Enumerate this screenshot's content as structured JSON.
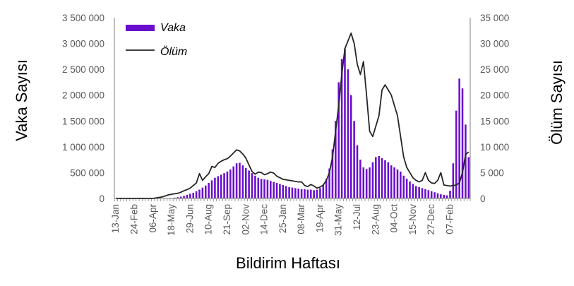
{
  "chart_data": {
    "type": "bar",
    "title": "",
    "xlabel": "Bildirim Haftası",
    "ylabel_left": "Vaka Sayısı",
    "ylabel_right": "Ölüm Sayısı",
    "ylim_left": [
      0,
      3500000
    ],
    "ylim_right": [
      0,
      35000
    ],
    "grid": false,
    "legend_position": "top-left",
    "colors": {
      "bars": "#6a0dcc",
      "line": "#262626",
      "ticks": "#595959",
      "axis": "#7f7f7f"
    },
    "y_ticks_left": [
      "0",
      "500 000",
      "1 000 000",
      "1 500 000",
      "2 000 000",
      "2 500 000",
      "3 000 000",
      "3 500 000"
    ],
    "y_ticks_right": [
      "0",
      "5 000",
      "10 000",
      "15 000",
      "20 000",
      "25 000",
      "30 000",
      "35 000"
    ],
    "x_tick_labels": [
      "13-Jan",
      "24-Feb",
      "06-Apr",
      "18-May",
      "29-Jun",
      "10-Aug",
      "21-Sep",
      "02-Nov",
      "14-Dec",
      "25-Jan",
      "08-Mar",
      "19-Apr",
      "31-May",
      "12-Jul",
      "23-Aug",
      "04-Oct",
      "15-Nov",
      "27-Dec",
      "07-Feb"
    ],
    "x_tick_weeks": [
      1,
      7,
      13,
      19,
      25,
      31,
      37,
      43,
      49,
      55,
      61,
      67,
      73,
      79,
      85,
      91,
      97,
      103,
      109
    ],
    "series": [
      {
        "name": "Vaka",
        "type": "bar",
        "axis": "left",
        "values": [
          0,
          0,
          0,
          0,
          0,
          0,
          0,
          0,
          0,
          0,
          0,
          0,
          0,
          500,
          1000,
          2000,
          3000,
          5000,
          8000,
          15000,
          25000,
          35000,
          50000,
          70000,
          90000,
          110000,
          140000,
          170000,
          210000,
          250000,
          300000,
          350000,
          400000,
          430000,
          460000,
          490000,
          520000,
          560000,
          620000,
          680000,
          690000,
          640000,
          590000,
          540000,
          490000,
          440000,
          400000,
          380000,
          370000,
          360000,
          340000,
          320000,
          300000,
          280000,
          260000,
          240000,
          220000,
          210000,
          200000,
          190000,
          180000,
          180000,
          170000,
          170000,
          160000,
          170000,
          200000,
          260000,
          380000,
          580000,
          950000,
          1500000,
          2250000,
          2700000,
          2900000,
          2500000,
          2000000,
          1500000,
          1030000,
          750000,
          600000,
          570000,
          600000,
          700000,
          800000,
          820000,
          780000,
          740000,
          700000,
          640000,
          600000,
          560000,
          520000,
          440000,
          380000,
          330000,
          280000,
          240000,
          220000,
          200000,
          180000,
          160000,
          140000,
          120000,
          100000,
          80000,
          70000,
          60000,
          150000,
          680000,
          1700000,
          2320000,
          2130000,
          1430000,
          800000
        ]
      },
      {
        "name": "Ölüm",
        "type": "line",
        "axis": "right",
        "values": [
          0,
          0,
          0,
          0,
          0,
          0,
          0,
          0,
          0,
          0,
          0,
          0,
          0,
          100,
          200,
          300,
          500,
          700,
          800,
          900,
          1000,
          1200,
          1500,
          1700,
          2000,
          2500,
          3000,
          4800,
          3500,
          4200,
          4800,
          6200,
          6000,
          6800,
          7200,
          7500,
          7700,
          8200,
          8800,
          9400,
          9200,
          8600,
          7800,
          6500,
          5200,
          4700,
          5100,
          5000,
          4600,
          4800,
          5100,
          4900,
          4300,
          4000,
          3700,
          3600,
          3500,
          3400,
          3300,
          3200,
          3200,
          2500,
          2300,
          2700,
          2400,
          2000,
          2200,
          2600,
          3500,
          5000,
          8000,
          13000,
          18000,
          24000,
          29000,
          30500,
          32000,
          30000,
          26000,
          24000,
          26500,
          20000,
          13000,
          12000,
          14000,
          16000,
          21000,
          22000,
          21000,
          20000,
          18000,
          16000,
          12000,
          8000,
          6000,
          5000,
          4000,
          3500,
          3200,
          3500,
          5000,
          3500,
          3000,
          2900,
          3500,
          5000,
          2600,
          2500,
          2400,
          2500,
          2600,
          3000,
          5000,
          8500,
          9000
        ]
      }
    ]
  }
}
